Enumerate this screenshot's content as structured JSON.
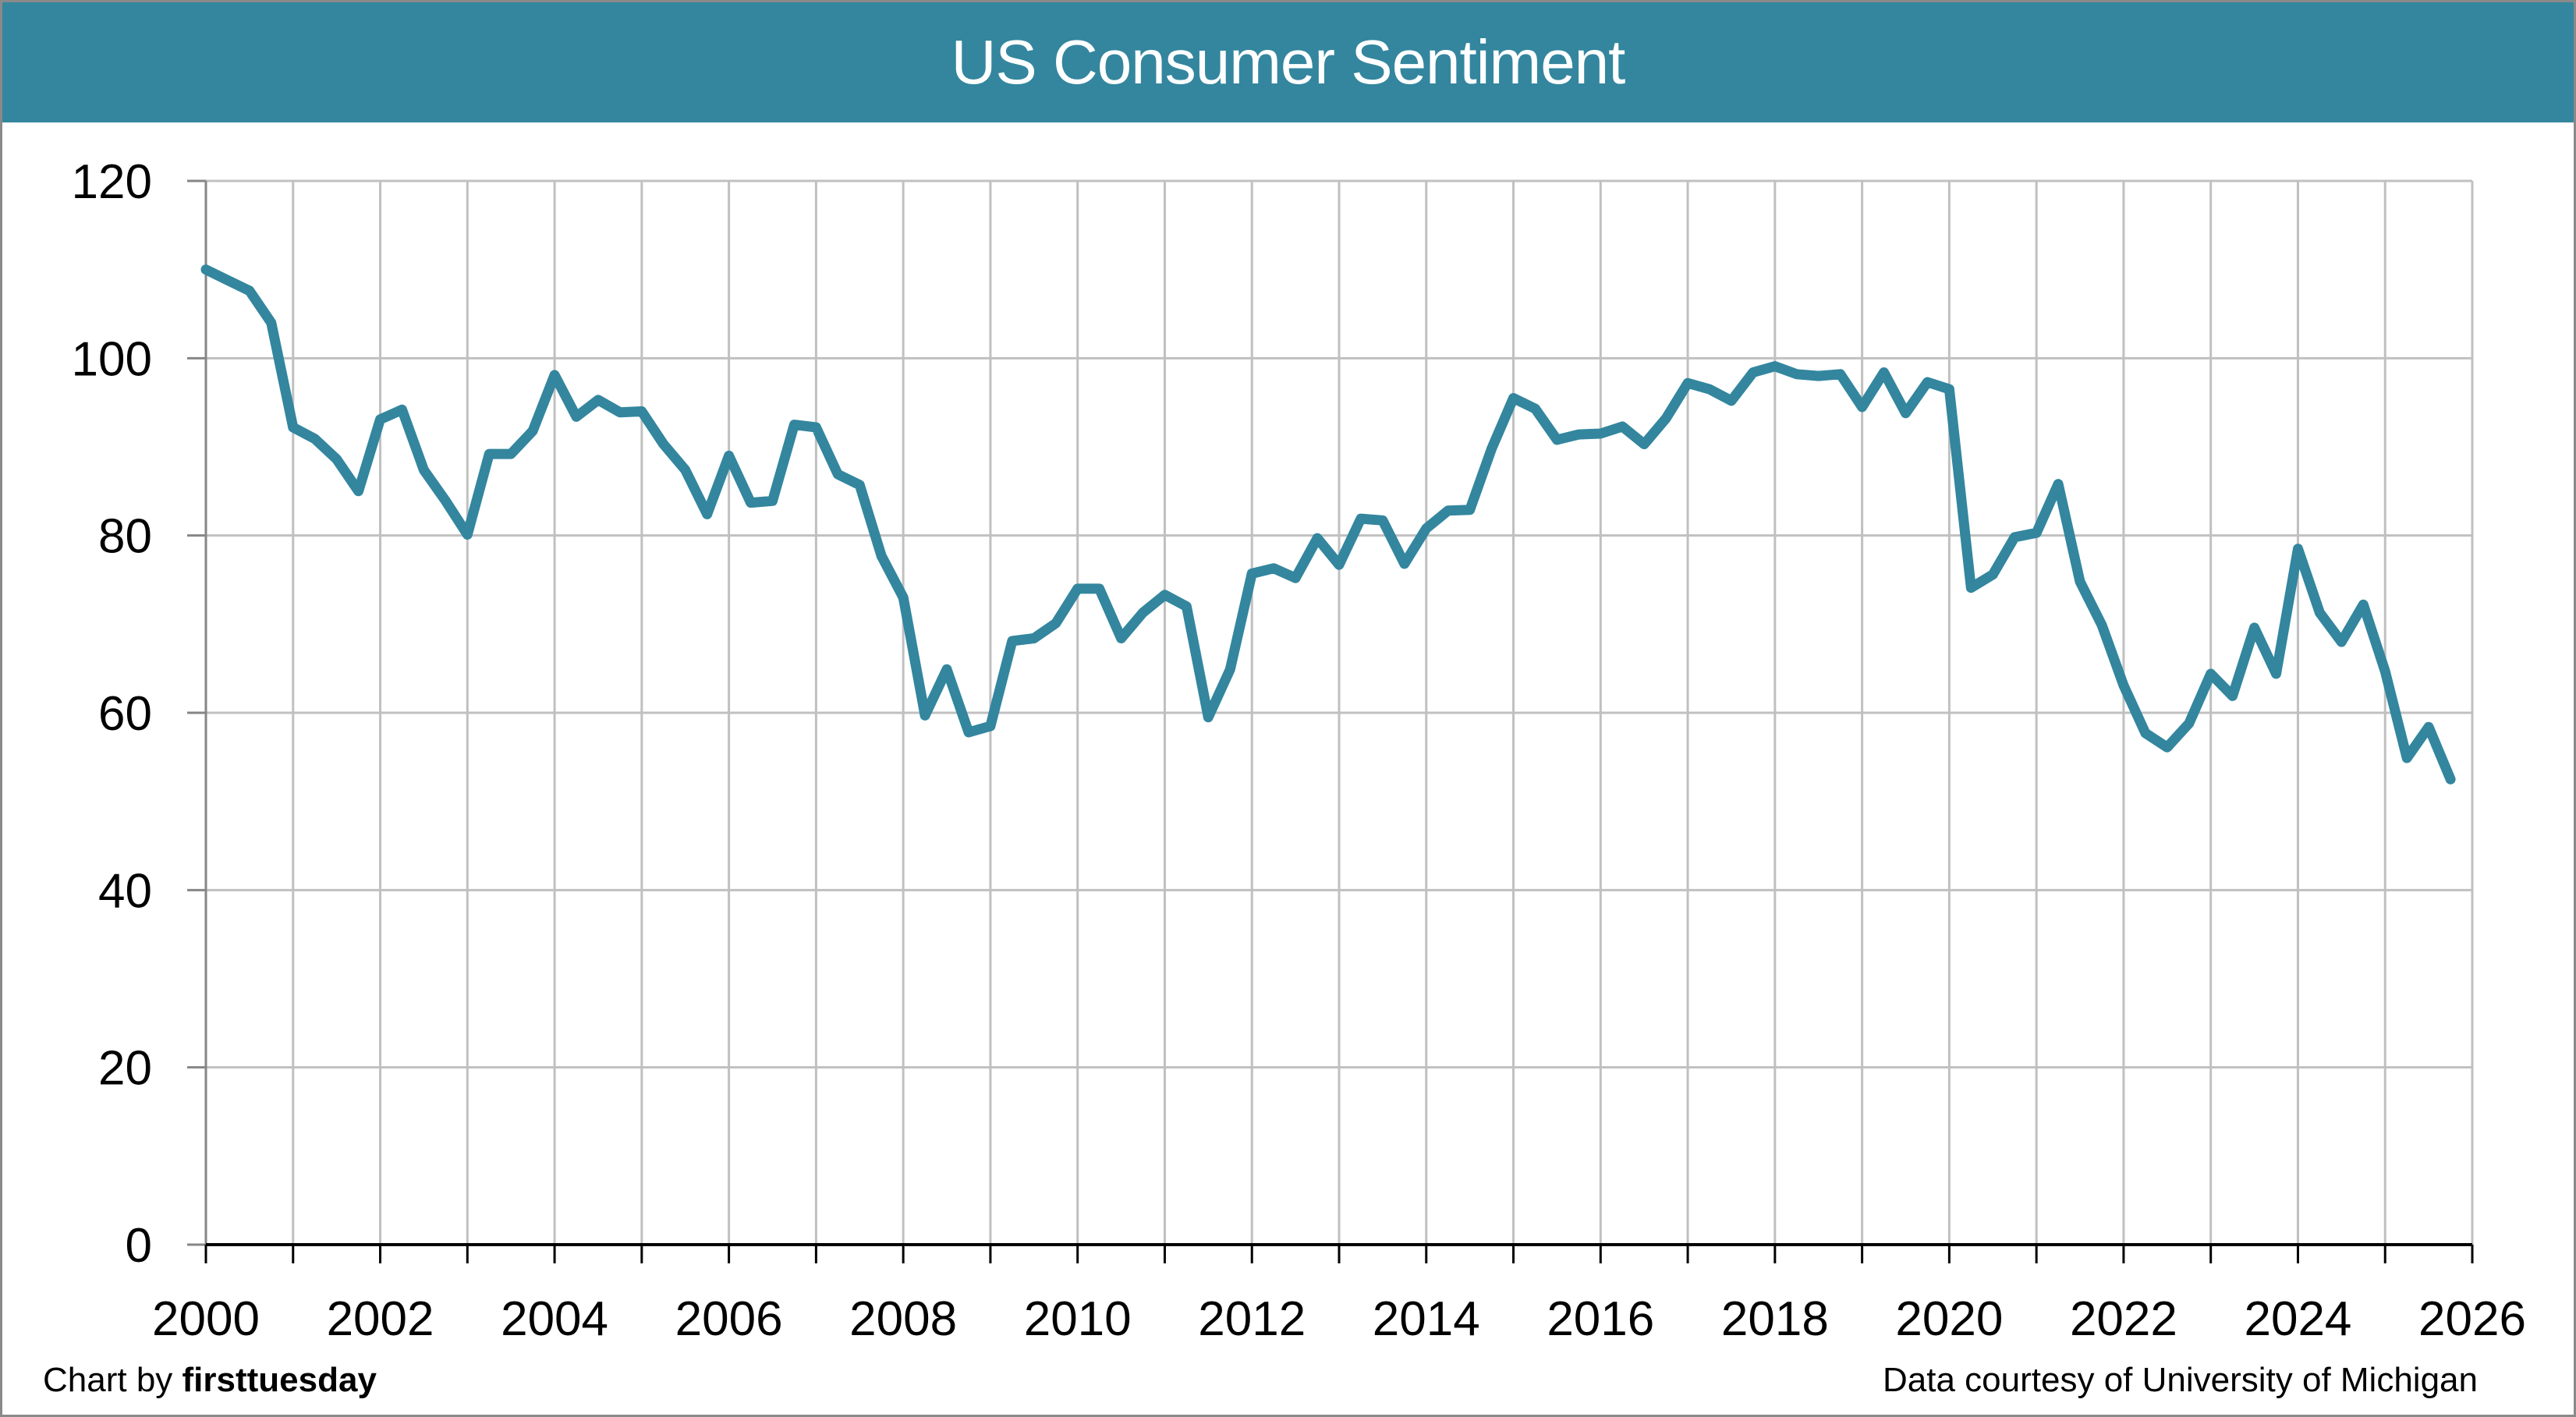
{
  "colors": {
    "header": "#33869e",
    "line": "#33869e",
    "grid": "#c0c0c0",
    "axis": "#000000",
    "title_text": "#ffffff"
  },
  "footer": {
    "credit_prefix": "Chart by",
    "credit_brand": "firsttuesday",
    "source": "Data courtesy of University of Michigan"
  },
  "chart_data": {
    "type": "line",
    "title": "US Consumer Sentiment",
    "xlabel": "",
    "ylabel": "",
    "xlim": [
      2000,
      2026
    ],
    "ylim": [
      0,
      120
    ],
    "yticks": [
      0,
      20,
      40,
      60,
      80,
      100,
      120
    ],
    "xticks": [
      2000,
      2002,
      2004,
      2006,
      2008,
      2010,
      2012,
      2014,
      2016,
      2018,
      2020,
      2022,
      2024,
      2026
    ],
    "xtick_labels": [
      "2000",
      "2002",
      "2004",
      "2006",
      "2008",
      "2010",
      "2012",
      "2014",
      "2016",
      "2018",
      "2020",
      "2022",
      "2024",
      "2026"
    ],
    "ytick_labels": [
      "0",
      "20",
      "40",
      "60",
      "80",
      "100",
      "120"
    ],
    "grid": true,
    "legend": "none",
    "frequency": "quarterly",
    "series": [
      {
        "name": "US Consumer Sentiment",
        "x_start": 2000.0,
        "x_step": 0.25,
        "values": [
          110.0,
          108.8,
          107.6,
          104.0,
          92.2,
          90.9,
          88.6,
          85.0,
          93.1,
          94.2,
          87.4,
          83.9,
          80.1,
          89.2,
          89.2,
          91.8,
          98.1,
          93.4,
          95.3,
          93.9,
          94.0,
          90.3,
          87.4,
          82.4,
          89.0,
          83.7,
          83.9,
          92.5,
          92.2,
          86.9,
          85.7,
          77.7,
          73.0,
          59.7,
          64.9,
          57.8,
          58.5,
          68.1,
          68.4,
          70.1,
          74.0,
          74.0,
          68.4,
          71.3,
          73.3,
          72.0,
          59.5,
          64.9,
          75.7,
          76.3,
          75.2,
          79.7,
          76.7,
          81.9,
          81.7,
          76.8,
          80.8,
          82.8,
          82.9,
          89.8,
          95.5,
          94.3,
          90.8,
          91.4,
          91.5,
          92.3,
          90.3,
          93.2,
          97.2,
          96.5,
          95.2,
          98.4,
          99.1,
          98.2,
          98.0,
          98.2,
          94.5,
          98.4,
          93.8,
          97.3,
          96.5,
          74.1,
          75.6,
          79.8,
          80.3,
          85.8,
          74.8,
          69.9,
          63.1,
          57.7,
          56.1,
          58.8,
          64.4,
          61.9,
          69.6,
          64.4,
          78.5,
          71.3,
          68.0,
          72.2,
          64.7,
          54.9,
          58.4,
          52.5
        ]
      }
    ]
  }
}
